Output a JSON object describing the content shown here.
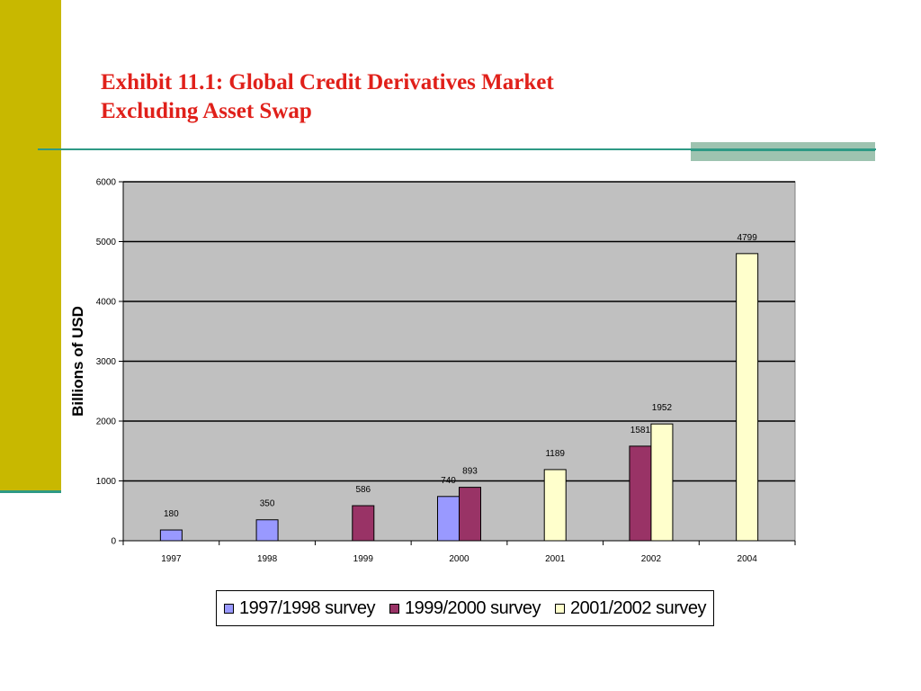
{
  "slide": {
    "title_line1": "Exhibit 11.1: Global Credit Derivatives Market",
    "title_line2": "Excluding Asset Swap"
  },
  "colors": {
    "band": "#c8b800",
    "rule": "#2e9a85",
    "title": "#e0201a",
    "plot_bg": "#c0c0c0"
  },
  "chart_data": {
    "type": "bar",
    "title": "",
    "xlabel": "",
    "ylabel": "Billions of USD",
    "ylim": [
      0,
      6000
    ],
    "yticks": [
      "0",
      "1000",
      "2000",
      "3000",
      "4000",
      "5000",
      "6000"
    ],
    "grid": true,
    "legend_position": "bottom",
    "categories": [
      "1997",
      "1998",
      "1999",
      "2000",
      "2001",
      "2002",
      "2004"
    ],
    "series": [
      {
        "name": "1997/1998 survey",
        "color": "#9999ff",
        "values": [
          180,
          350,
          null,
          740,
          null,
          null,
          null
        ]
      },
      {
        "name": "1999/2000 survey",
        "color": "#993366",
        "values": [
          null,
          null,
          586,
          893,
          null,
          1581,
          null
        ]
      },
      {
        "name": "2001/2002 survey",
        "color": "#ffffcc",
        "values": [
          null,
          null,
          null,
          null,
          1189,
          1952,
          4799
        ]
      }
    ]
  }
}
